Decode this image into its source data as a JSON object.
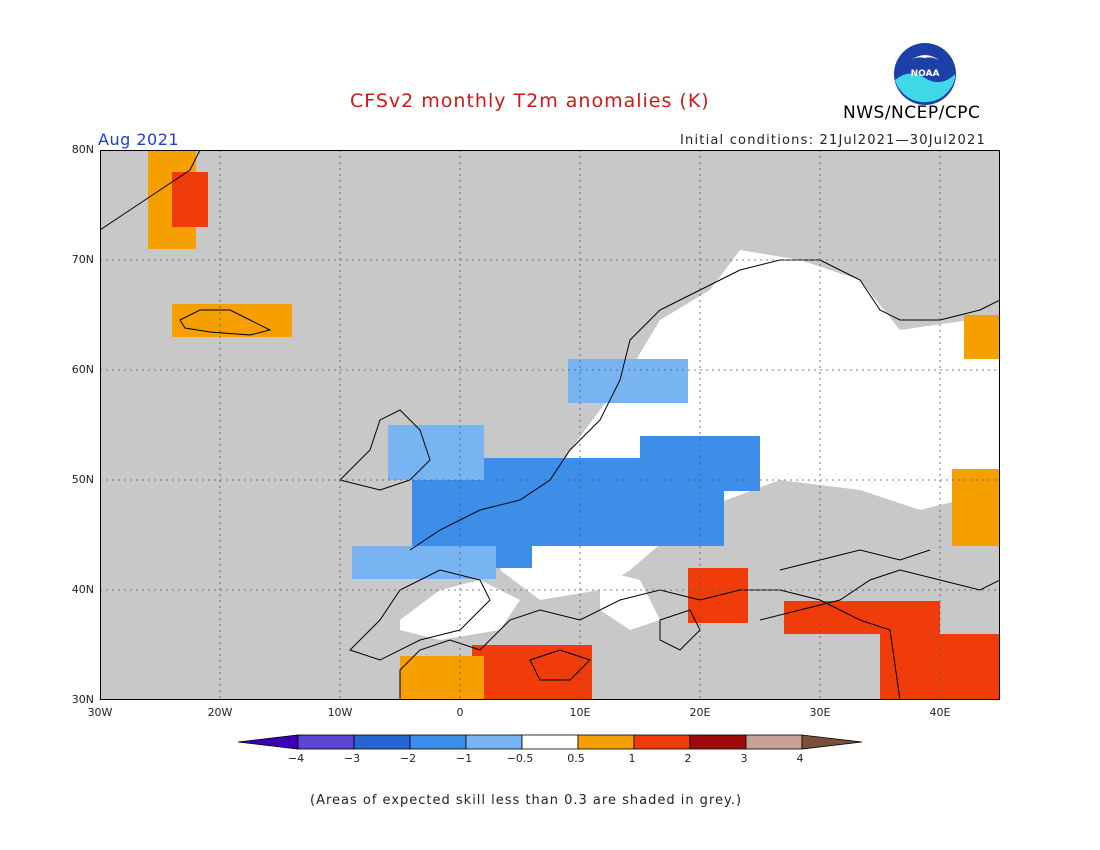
{
  "title": "CFSv2 monthly T2m anomalies (K)",
  "agency": "NWS/NCEP/CPC",
  "logo_text": "NOAA",
  "forecast_month": "Aug 2021",
  "initial_conditions": "Initial conditions: 21Jul2021—30Jul2021",
  "footnote": "(Areas of expected skill less than 0.3 are shaded in grey.)",
  "map": {
    "lon_range": [
      -30,
      45
    ],
    "lat_range": [
      30,
      80
    ],
    "lat_labels": [
      "80N",
      "70N",
      "60N",
      "50N",
      "40N",
      "30N"
    ],
    "lon_labels": [
      "30W",
      "20W",
      "10W",
      "0",
      "10E",
      "20E",
      "30E",
      "40E"
    ],
    "regions": [
      {
        "name": "central-europe-cold",
        "category": "-2",
        "color": "#3c8ee8",
        "lon": [
          -4,
          22
        ],
        "lat": [
          44,
          52
        ]
      },
      {
        "name": "france-cold",
        "category": "-2",
        "color": "#3c8ee8",
        "lon": [
          -2,
          6
        ],
        "lat": [
          42,
          47
        ]
      },
      {
        "name": "poland-cold",
        "category": "-2",
        "color": "#3c8ee8",
        "lon": [
          15,
          25
        ],
        "lat": [
          49,
          54
        ]
      },
      {
        "name": "uk-cool",
        "category": "-1",
        "color": "#78b4f2",
        "lon": [
          -6,
          2
        ],
        "lat": [
          50,
          55
        ]
      },
      {
        "name": "iberia-north-cool",
        "category": "-1",
        "color": "#78b4f2",
        "lon": [
          -9,
          3
        ],
        "lat": [
          41,
          44
        ]
      },
      {
        "name": "scandinavia-south-cool",
        "category": "-1",
        "color": "#78b4f2",
        "lon": [
          9,
          19
        ],
        "lat": [
          57,
          61
        ]
      },
      {
        "name": "greenland-warm",
        "category": "1",
        "color": "#f5a000",
        "lon": [
          -26,
          -22
        ],
        "lat": [
          71,
          80
        ]
      },
      {
        "name": "greenland-hot",
        "category": "2",
        "color": "#f03c0a",
        "lon": [
          -24,
          -21
        ],
        "lat": [
          73,
          78
        ]
      },
      {
        "name": "iceland-warm",
        "category": "1",
        "color": "#f5a000",
        "lon": [
          -24,
          -14
        ],
        "lat": [
          63,
          66
        ]
      },
      {
        "name": "north-africa-hot",
        "category": "2",
        "color": "#f03c0a",
        "lon": [
          1,
          11
        ],
        "lat": [
          30,
          35
        ]
      },
      {
        "name": "north-africa-warm",
        "category": "1",
        "color": "#f5a000",
        "lon": [
          -5,
          2
        ],
        "lat": [
          30,
          34
        ]
      },
      {
        "name": "greece-balkans-hot",
        "category": "2",
        "color": "#f03c0a",
        "lon": [
          19,
          24
        ],
        "lat": [
          37,
          42
        ]
      },
      {
        "name": "turkey-hot",
        "category": "2",
        "color": "#f03c0a",
        "lon": [
          27,
          40
        ],
        "lat": [
          36,
          39
        ]
      },
      {
        "name": "middle-east-hot",
        "category": "2",
        "color": "#f03c0a",
        "lon": [
          35,
          45
        ],
        "lat": [
          30,
          36
        ]
      },
      {
        "name": "urals-warm",
        "category": "1",
        "color": "#f5a000",
        "lon": [
          41,
          45
        ],
        "lat": [
          44,
          51
        ]
      },
      {
        "name": "russia-northeast-warm",
        "category": "1",
        "color": "#f5a000",
        "lon": [
          42,
          45
        ],
        "lat": [
          61,
          65
        ]
      }
    ]
  },
  "colorbar": {
    "colors": [
      "#3c00b4",
      "#5a46d2",
      "#2864d2",
      "#3c8ee8",
      "#78b4f2",
      "#ffffff",
      "#f5a000",
      "#f03c0a",
      "#a00a0a",
      "#c8a096",
      "#78503c"
    ],
    "labels": [
      "−4",
      "−3",
      "−2",
      "−1",
      "−0.5",
      "0.5",
      "1",
      "2",
      "3",
      "4"
    ]
  }
}
